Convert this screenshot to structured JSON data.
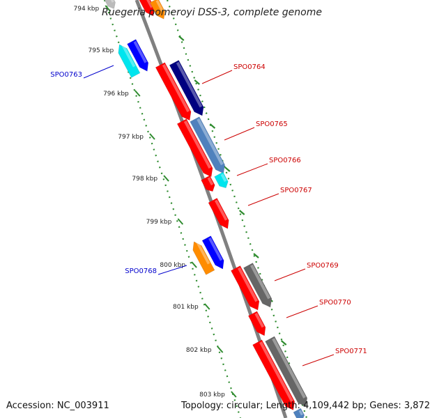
{
  "title": "Ruegeria pomeroyi DSS-3, complete genome",
  "accession": "Accession: NC_003911",
  "summary": "Topology: circular; Length: 4,109,442 bp; Genes: 3,872",
  "colors": {
    "backbone": "#808080",
    "ruler": "#2e8b2e",
    "gene_label_red": "#cc0000",
    "gene_label_blue": "#0000cc",
    "red": "#ff0000",
    "navy": "#000080",
    "blue": "#0000ff",
    "steelblue": "#4f81bd",
    "cyan": "#00e5ee",
    "orange": "#ff8c00",
    "gray": "#666666",
    "lightgray": "#bbbbbb"
  },
  "ruler": {
    "ticks": [
      "794 kbp",
      "795 kbp",
      "796 kbp",
      "797 kbp",
      "798 kbp",
      "799 kbp",
      "800 kbp",
      "801 kbp",
      "802 kbp",
      "803 kbp"
    ]
  },
  "gene_labels": [
    {
      "name": "SPO0763",
      "strand": "left",
      "color": "blue"
    },
    {
      "name": "SPO0764",
      "strand": "right",
      "color": "red"
    },
    {
      "name": "SPO0765",
      "strand": "right",
      "color": "red"
    },
    {
      "name": "SPO0766",
      "strand": "right",
      "color": "red"
    },
    {
      "name": "SPO0767",
      "strand": "right",
      "color": "red"
    },
    {
      "name": "SPO0768",
      "strand": "left",
      "color": "blue"
    },
    {
      "name": "SPO0769",
      "strand": "right",
      "color": "red"
    },
    {
      "name": "SPO0770",
      "strand": "right",
      "color": "red"
    },
    {
      "name": "SPO0771",
      "strand": "right",
      "color": "red"
    }
  ]
}
